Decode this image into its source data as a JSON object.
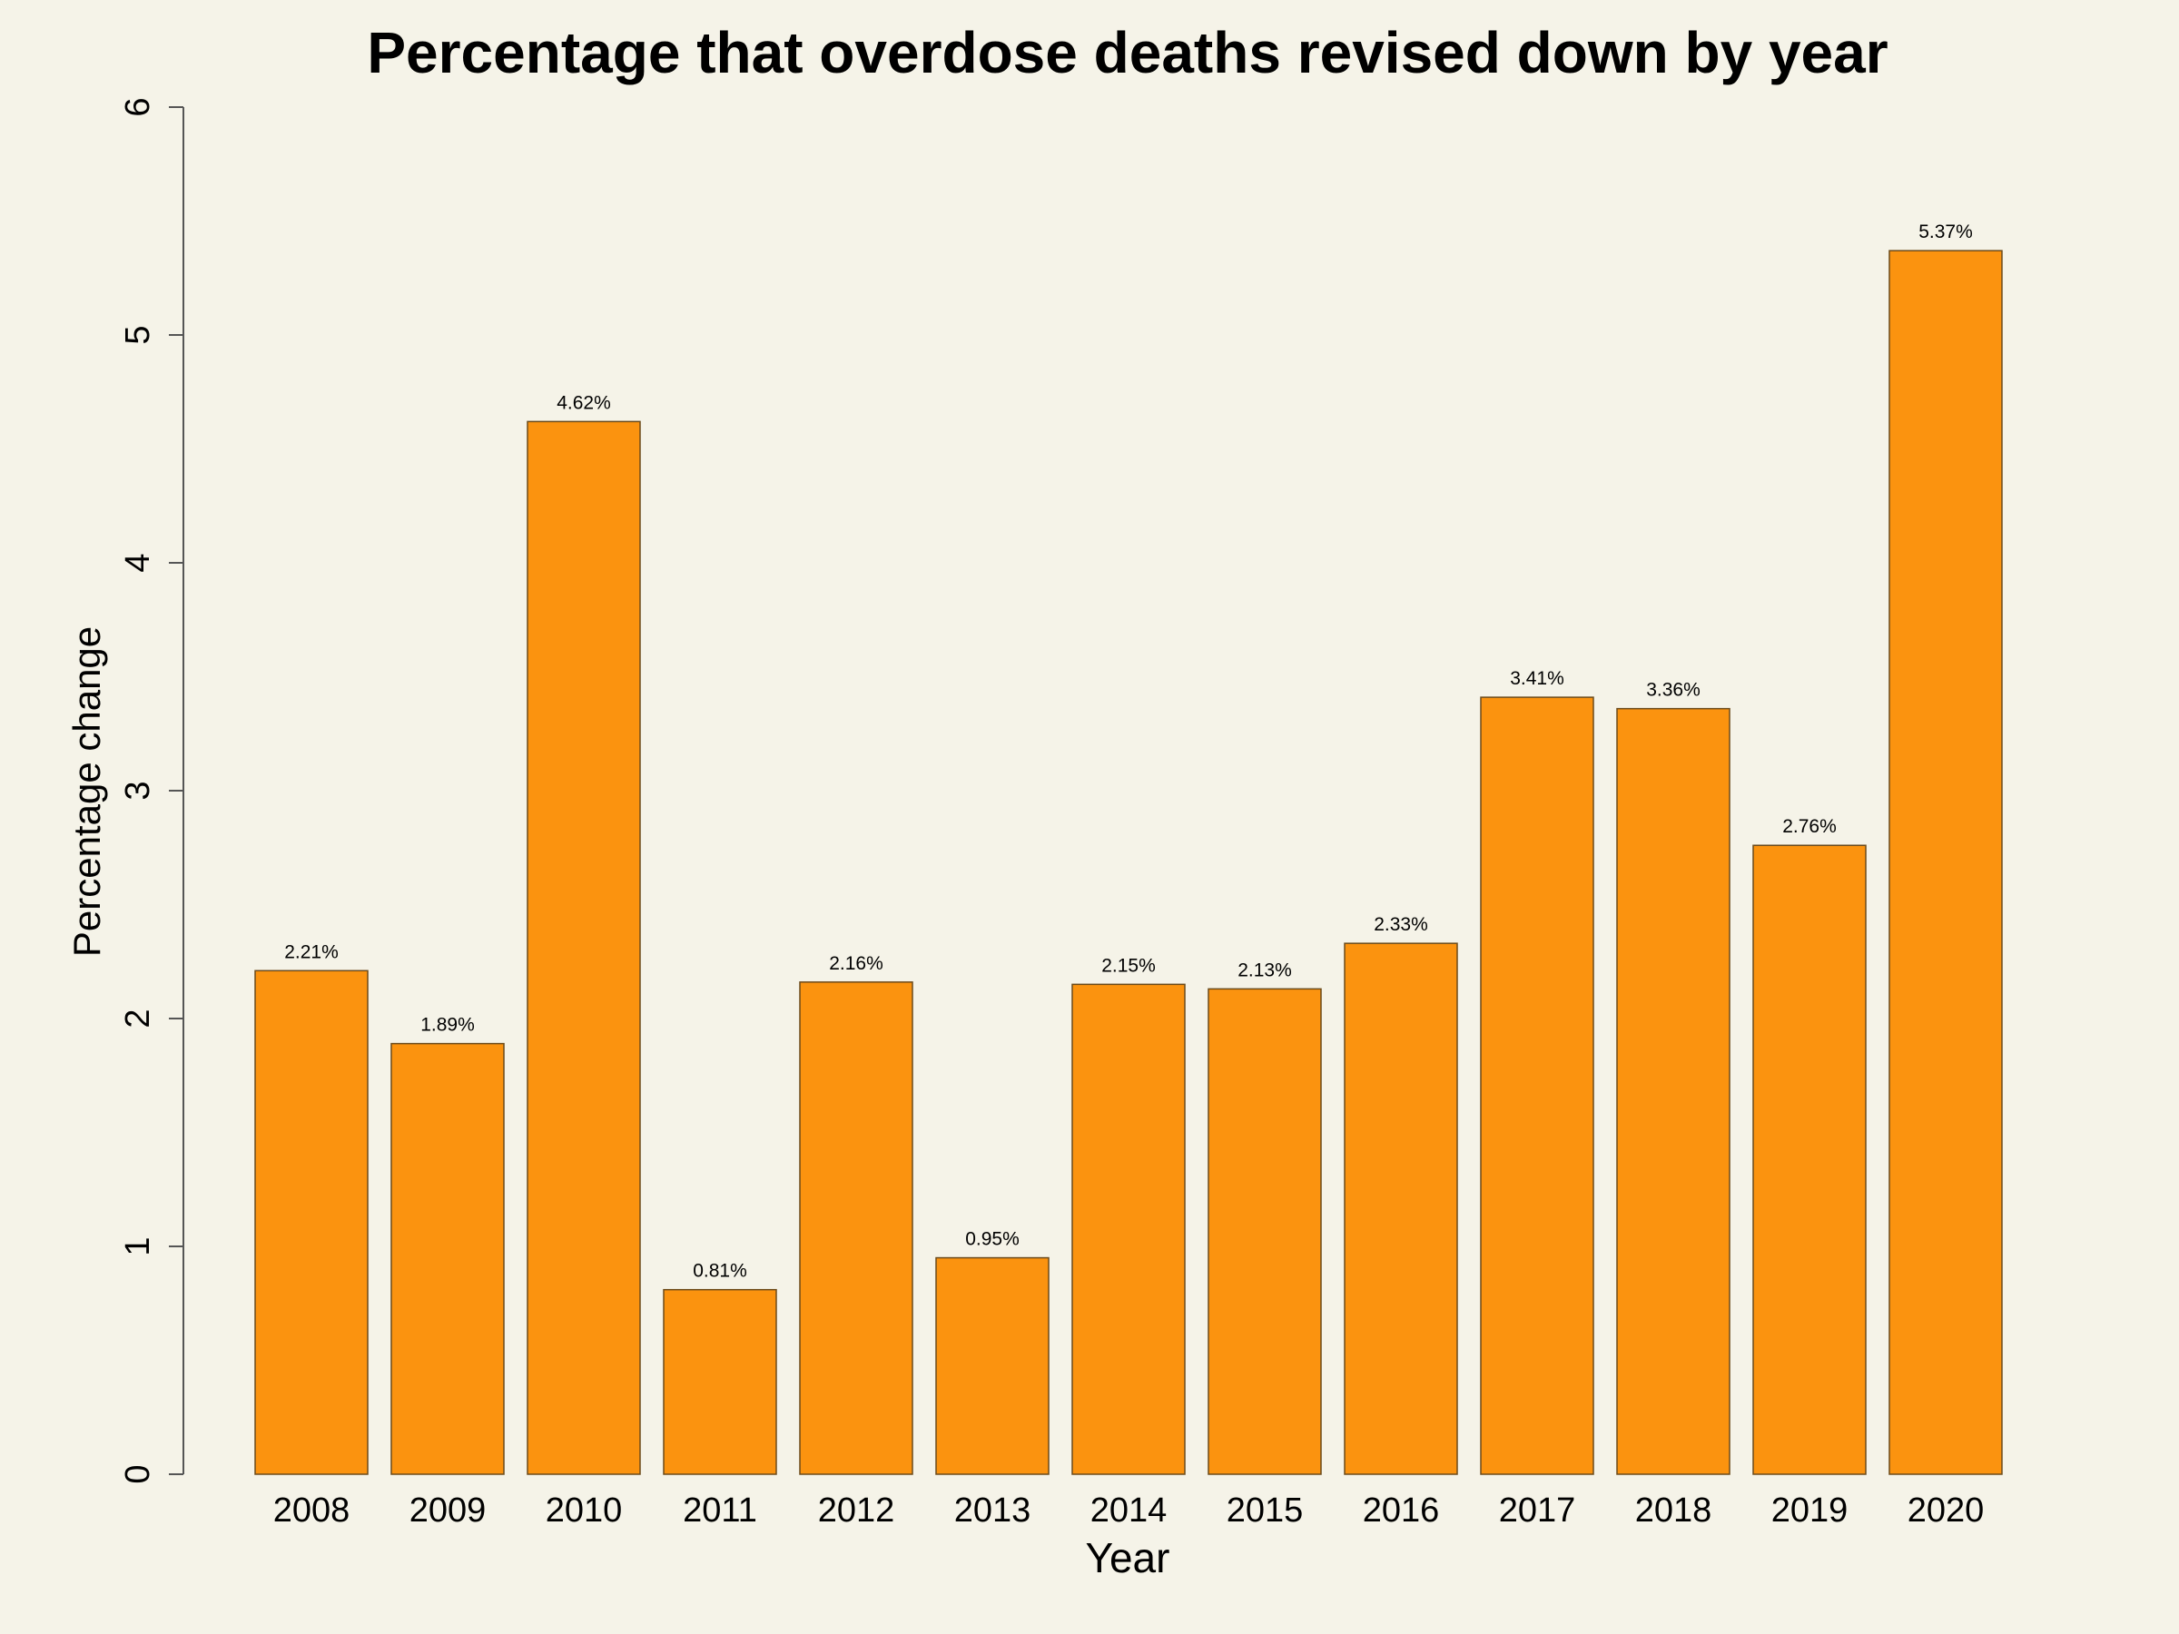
{
  "chart_data": {
    "type": "bar",
    "title": "Percentage that overdose deaths revised down by year",
    "xlabel": "Year",
    "ylabel": "Percentage change",
    "categories": [
      "2008",
      "2009",
      "2010",
      "2011",
      "2012",
      "2013",
      "2014",
      "2015",
      "2016",
      "2017",
      "2018",
      "2019",
      "2020"
    ],
    "values": [
      2.21,
      1.89,
      4.62,
      0.81,
      2.16,
      0.95,
      2.15,
      2.13,
      2.33,
      3.41,
      3.36,
      2.76,
      5.37
    ],
    "data_labels": [
      "2.21%",
      "1.89%",
      "4.62%",
      "0.81%",
      "2.16%",
      "0.95%",
      "2.15%",
      "2.13%",
      "2.33%",
      "3.41%",
      "3.36%",
      "2.76%",
      "5.37%"
    ],
    "ylim": [
      0,
      6
    ],
    "yticks": [
      0,
      1,
      2,
      3,
      4,
      5,
      6
    ],
    "ytick_labels": [
      "0",
      "1",
      "2",
      "3",
      "4",
      "5",
      "6"
    ],
    "grid": false,
    "legend": "none",
    "colors": {
      "bar_fill": "#fb930f",
      "bar_stroke": "#6b4a1a",
      "background": "#f5f3e8",
      "axis": "#555555"
    }
  }
}
